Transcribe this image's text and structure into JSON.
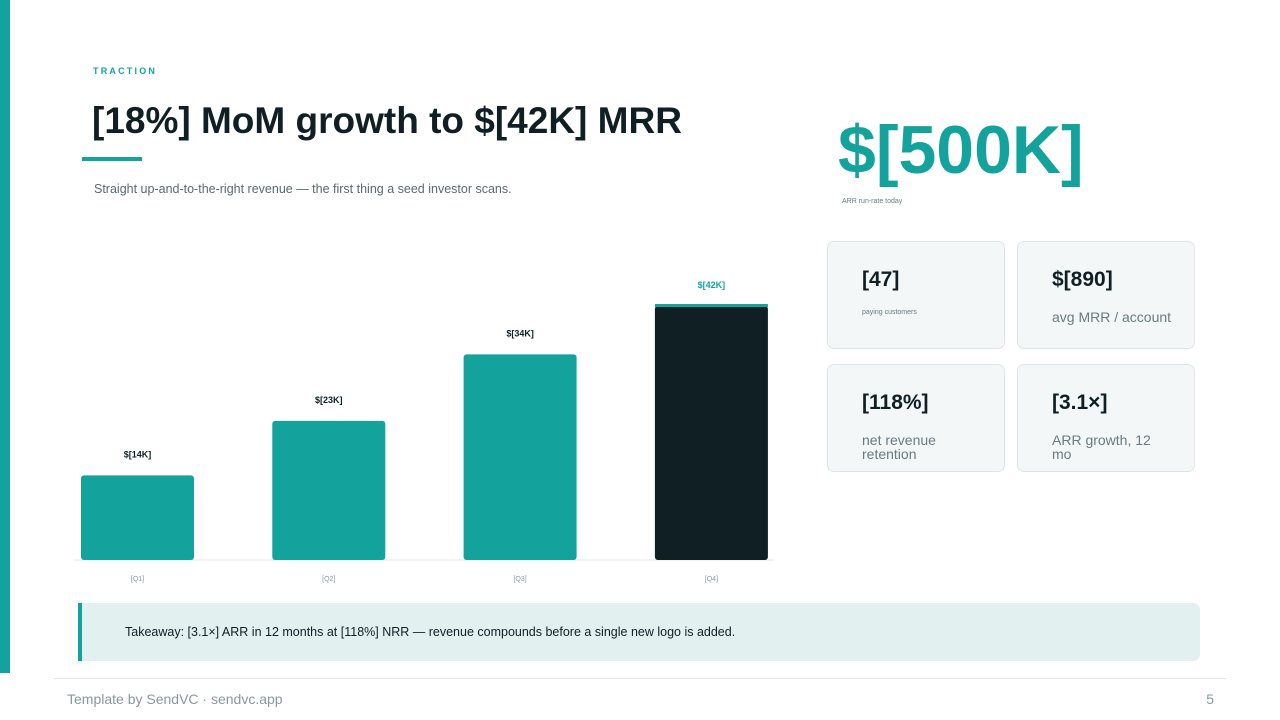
{
  "slide": {
    "eyebrow": "TRACTION",
    "title": "[18%] MoM growth to $[42K] MRR",
    "subtitle": "Straight up-and-to-the-right revenue — the first thing a seed investor scans."
  },
  "headline_metric": {
    "value": "$[500K]",
    "caption": "ARR run-rate today"
  },
  "stats": [
    {
      "value": "[47]",
      "label": "paying customers"
    },
    {
      "value": "$[890]",
      "label": "avg MRR / account"
    },
    {
      "value": "[118%]",
      "label": "net revenue retention"
    },
    {
      "value": "[3.1×]",
      "label": "ARR growth, 12 mo"
    }
  ],
  "takeaway": "Takeaway: [3.1×] ARR in 12 months at [118%] NRR — revenue compounds before a single new logo is added.",
  "footer": {
    "credit": "Template by SendVC · sendvc.app",
    "page_number": "5"
  },
  "colors": {
    "accent": "#14a39c",
    "highlight_bar": "#0f1f24",
    "text": "#0f1f24",
    "muted": "#6a7a80"
  },
  "chart_data": {
    "type": "bar",
    "categories": [
      "[Q1]",
      "[Q2]",
      "[Q3]",
      "[Q4]"
    ],
    "values": [
      14,
      23,
      34,
      42
    ],
    "value_labels": [
      "$[14K]",
      "$[23K]",
      "$[34K]",
      "$[42K]"
    ],
    "highlight_index": 3,
    "title": "",
    "xlabel": "",
    "ylabel": "",
    "ylim": [
      0,
      42
    ],
    "grid": false,
    "legend": "none"
  }
}
